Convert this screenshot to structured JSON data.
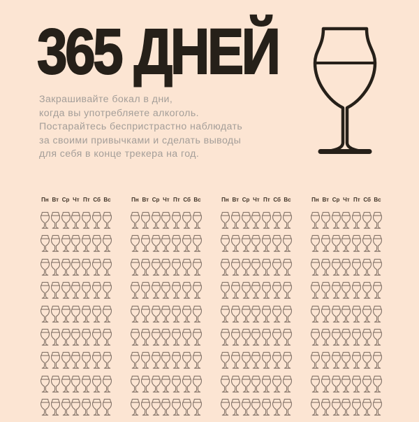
{
  "page": {
    "background_color": "#fce5d3"
  },
  "header": {
    "title": "365 ДНЕЙ",
    "title_color": "#262019"
  },
  "intro": {
    "color": "#a49e99",
    "lines": [
      "Закрашивайте бокал в дни,",
      "когда вы употребляете алкоголь.",
      "Постарайтесь беспристрастно наблюдать",
      "за своими привычками и сделать выводы",
      "для себя в конце трекера на год."
    ]
  },
  "icons": {
    "big_wine_glass": "wine-glass-outline",
    "small_wine_glass": "wine-glass-outline-small"
  },
  "tracker": {
    "day_labels": [
      "Пн",
      "Вт",
      "Ср",
      "Чт",
      "Пт",
      "Сб",
      "Вс"
    ],
    "column_blocks": 4,
    "visible_rows": 9,
    "glasses_per_row": 7,
    "label_color": "#413428",
    "glass_color": "#85756a"
  }
}
